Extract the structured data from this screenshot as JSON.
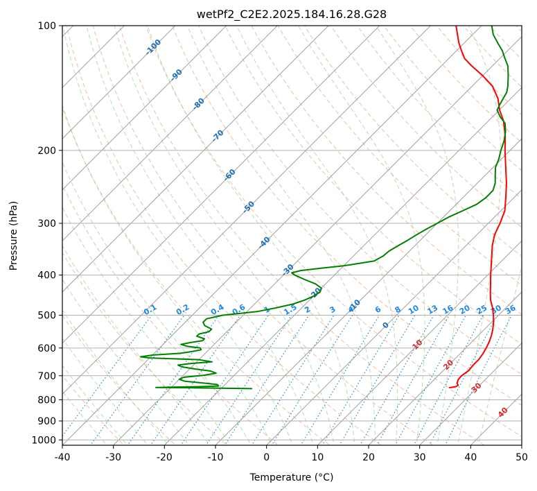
{
  "chart_data": {
    "type": "skew-t",
    "title": "wetPf2_C2E2.2025.184.16.28.G28",
    "xlabel": "Temperature (°C)",
    "ylabel": "Pressure (hPa)",
    "xlim": [
      -40,
      50
    ],
    "ylim": [
      1030,
      100
    ],
    "y_scale": "log",
    "x_ticks": [
      "-40",
      "-30",
      "-20",
      "-10",
      "0",
      "10",
      "20",
      "30",
      "40",
      "50"
    ],
    "y_ticks": [
      "100",
      "200",
      "300",
      "400",
      "500",
      "600",
      "700",
      "800",
      "900",
      "1000"
    ],
    "grid": true,
    "colors": {
      "temperature": "#ff0000",
      "dewpoint": "#008000",
      "isotherm": "#a0a0a0",
      "dry_adiabat": "#f4a582",
      "moist_adiabat": "#93c98e",
      "mixing_ratio": "#1e88e5",
      "isotherm_label": "#1f6fb4",
      "dry_adiabat_label": "#d32f2f"
    },
    "isotherm_labels": [
      "-100",
      "-90",
      "-80",
      "-70",
      "-60",
      "-50",
      "-40",
      "-30",
      "-20",
      "-10",
      "0",
      "10",
      "20",
      "30",
      "40"
    ],
    "mixing_ratio_labels": [
      "0.1",
      "0.2",
      "0.4",
      "0.6",
      "1",
      "1.5",
      "2",
      "3",
      "4",
      "6",
      "8",
      "10",
      "13",
      "16",
      "20",
      "25",
      "30",
      "36"
    ],
    "series": [
      {
        "key": "temperature",
        "points": [
          [
            748,
            24.6
          ],
          [
            744,
            25.6
          ],
          [
            738,
            25.8
          ],
          [
            730,
            25.2
          ],
          [
            715,
            24.7
          ],
          [
            700,
            24.6
          ],
          [
            680,
            25.0
          ],
          [
            660,
            24.8
          ],
          [
            640,
            24.8
          ],
          [
            620,
            24.5
          ],
          [
            600,
            24.0
          ],
          [
            580,
            23.4
          ],
          [
            560,
            22.6
          ],
          [
            540,
            21.6
          ],
          [
            520,
            20.4
          ],
          [
            500,
            19.0
          ],
          [
            480,
            17.4
          ],
          [
            460,
            15.5
          ],
          [
            440,
            13.9
          ],
          [
            420,
            12.3
          ],
          [
            400,
            10.6
          ],
          [
            380,
            8.9
          ],
          [
            360,
            7.1
          ],
          [
            340,
            5.2
          ],
          [
            320,
            3.5
          ],
          [
            300,
            2.3
          ],
          [
            280,
            0.8
          ],
          [
            260,
            -1.6
          ],
          [
            240,
            -4.3
          ],
          [
            220,
            -7.5
          ],
          [
            200,
            -11.0
          ],
          [
            185,
            -13.7
          ],
          [
            170,
            -17.0
          ],
          [
            160,
            -19.9
          ],
          [
            150,
            -22.5
          ],
          [
            140,
            -26.0
          ],
          [
            132,
            -30.0
          ],
          [
            125,
            -34.1
          ],
          [
            120,
            -36.9
          ],
          [
            115,
            -39.0
          ],
          [
            110,
            -41.1
          ],
          [
            105,
            -43.0
          ],
          [
            100,
            -45.0
          ]
        ]
      },
      {
        "key": "dewpoint",
        "points": [
          [
            752,
            -14.0
          ],
          [
            750,
            -20.0
          ],
          [
            748,
            -28.0
          ],
          [
            747,
            -33.0
          ],
          [
            744,
            -25.0
          ],
          [
            741,
            -21.0
          ],
          [
            735,
            -21.5
          ],
          [
            728,
            -25.0
          ],
          [
            722,
            -28.5
          ],
          [
            714,
            -30.0
          ],
          [
            706,
            -29.5
          ],
          [
            698,
            -26.0
          ],
          [
            690,
            -24.0
          ],
          [
            682,
            -25.5
          ],
          [
            674,
            -29.0
          ],
          [
            666,
            -32.0
          ],
          [
            660,
            -33.0
          ],
          [
            654,
            -31.0
          ],
          [
            648,
            -27.0
          ],
          [
            640,
            -30.0
          ],
          [
            634,
            -40.0
          ],
          [
            630,
            -42.0
          ],
          [
            624,
            -40.0
          ],
          [
            618,
            -35.0
          ],
          [
            612,
            -33.0
          ],
          [
            606,
            -31.5
          ],
          [
            600,
            -32.0
          ],
          [
            594,
            -35.0
          ],
          [
            588,
            -36.5
          ],
          [
            582,
            -35.0
          ],
          [
            576,
            -33.0
          ],
          [
            570,
            -33.0
          ],
          [
            562,
            -35.0
          ],
          [
            555,
            -35.0
          ],
          [
            548,
            -33.5
          ],
          [
            540,
            -33.5
          ],
          [
            530,
            -35.5
          ],
          [
            520,
            -36.5
          ],
          [
            510,
            -36.5
          ],
          [
            500,
            -34.0
          ],
          [
            490,
            -28.0
          ],
          [
            480,
            -25.0
          ],
          [
            470,
            -22.5
          ],
          [
            460,
            -21.0
          ],
          [
            450,
            -20.0
          ],
          [
            440,
            -19.5
          ],
          [
            430,
            -20.0
          ],
          [
            420,
            -22.0
          ],
          [
            410,
            -25.0
          ],
          [
            400,
            -27.8
          ],
          [
            395,
            -28.8
          ],
          [
            390,
            -27.5
          ],
          [
            385,
            -24.0
          ],
          [
            380,
            -20.0
          ],
          [
            370,
            -15.0
          ],
          [
            360,
            -14.2
          ],
          [
            350,
            -14.0
          ],
          [
            340,
            -13.3
          ],
          [
            330,
            -12.5
          ],
          [
            320,
            -11.8
          ],
          [
            310,
            -11.0
          ],
          [
            300,
            -10.0
          ],
          [
            290,
            -9.0
          ],
          [
            280,
            -7.5
          ],
          [
            270,
            -6.0
          ],
          [
            260,
            -5.5
          ],
          [
            250,
            -5.5
          ],
          [
            240,
            -6.5
          ],
          [
            230,
            -8.0
          ],
          [
            220,
            -9.5
          ],
          [
            210,
            -10.5
          ],
          [
            200,
            -11.8
          ],
          [
            190,
            -13.0
          ],
          [
            180,
            -14.6
          ],
          [
            172,
            -16.3
          ],
          [
            166,
            -18.5
          ],
          [
            160,
            -20.4
          ],
          [
            155,
            -21.0
          ],
          [
            150,
            -21.5
          ],
          [
            145,
            -22.0
          ],
          [
            140,
            -23.0
          ],
          [
            132,
            -25.0
          ],
          [
            125,
            -27.0
          ],
          [
            120,
            -29.0
          ],
          [
            115,
            -31.0
          ],
          [
            110,
            -33.5
          ],
          [
            105,
            -36.0
          ],
          [
            100,
            -38.0
          ]
        ]
      }
    ]
  }
}
